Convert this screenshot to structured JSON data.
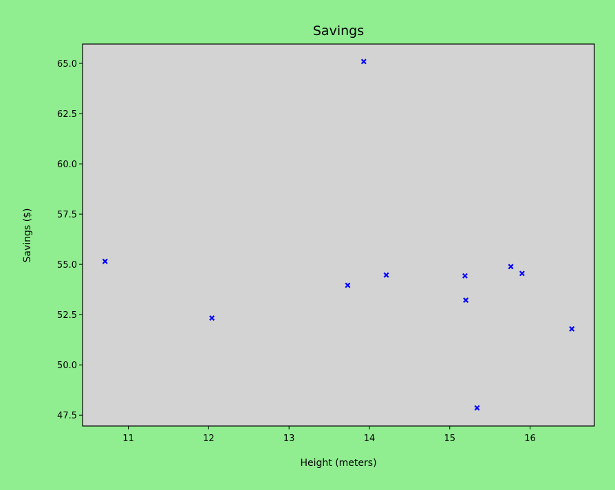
{
  "chart_data": {
    "type": "scatter",
    "title": "Savings",
    "xlabel": "Height (meters)",
    "ylabel": "Savings ($)",
    "xlim": [
      10.43,
      16.8
    ],
    "ylim": [
      46.96,
      65.96
    ],
    "xticks": [
      11,
      12,
      13,
      14,
      15,
      16
    ],
    "yticks": [
      47.5,
      50.0,
      52.5,
      55.0,
      57.5,
      60.0,
      62.5,
      65.0
    ],
    "ytick_labels": [
      "47.5",
      "50.0",
      "52.5",
      "55.0",
      "57.5",
      "60.0",
      "62.5",
      "65.0"
    ],
    "grid": false,
    "marker": "x",
    "colors": {
      "background": "#90EE90",
      "plot_area": "#D3D3D3",
      "points": "#0000FF"
    },
    "points": [
      {
        "x": 10.71,
        "y": 55.15
      },
      {
        "x": 12.04,
        "y": 52.33
      },
      {
        "x": 13.73,
        "y": 53.96
      },
      {
        "x": 13.93,
        "y": 65.09
      },
      {
        "x": 14.21,
        "y": 54.47
      },
      {
        "x": 15.19,
        "y": 54.43
      },
      {
        "x": 15.2,
        "y": 53.22
      },
      {
        "x": 15.34,
        "y": 47.86
      },
      {
        "x": 15.76,
        "y": 54.89
      },
      {
        "x": 15.9,
        "y": 54.55
      },
      {
        "x": 16.52,
        "y": 51.79
      }
    ]
  }
}
